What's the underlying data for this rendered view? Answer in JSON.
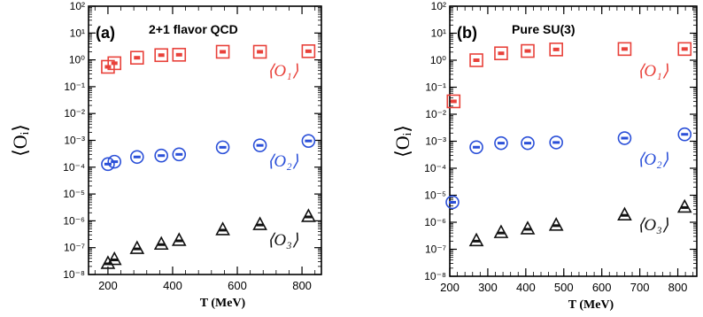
{
  "chart_data": [
    {
      "type": "scatter",
      "panel_label": "(a)",
      "title": "2+1 flavor QCD",
      "xlabel": "T (MeV)",
      "ylabel": "⟨Oᵢ⟩",
      "xlim": [
        140,
        860
      ],
      "ylim": [
        1e-08,
        100
      ],
      "yscale": "log",
      "xticks": [
        200,
        400,
        600,
        800
      ],
      "xtick_labels": [
        "200",
        "400",
        "600",
        "800"
      ],
      "grid": false,
      "series": [
        {
          "name": "⟨O₁⟩",
          "color": "#e8413a",
          "marker": "square",
          "points": [
            {
              "x": 200,
              "y": 0.55
            },
            {
              "x": 220,
              "y": 0.75
            },
            {
              "x": 290,
              "y": 1.2
            },
            {
              "x": 365,
              "y": 1.5
            },
            {
              "x": 420,
              "y": 1.55
            },
            {
              "x": 555,
              "y": 2.0
            },
            {
              "x": 670,
              "y": 2.0
            },
            {
              "x": 820,
              "y": 2.1
            }
          ]
        },
        {
          "name": "⟨O₂⟩",
          "color": "#2a4fd8",
          "marker": "circle",
          "points": [
            {
              "x": 200,
              "y": 0.00013
            },
            {
              "x": 220,
              "y": 0.00016
            },
            {
              "x": 290,
              "y": 0.00024
            },
            {
              "x": 365,
              "y": 0.00027
            },
            {
              "x": 420,
              "y": 0.0003
            },
            {
              "x": 555,
              "y": 0.00055
            },
            {
              "x": 670,
              "y": 0.00065
            },
            {
              "x": 820,
              "y": 0.00095
            }
          ]
        },
        {
          "name": "⟨O₃⟩",
          "color": "#111111",
          "marker": "triangle",
          "points": [
            {
              "x": 200,
              "y": 2.5e-08
            },
            {
              "x": 220,
              "y": 3.5e-08
            },
            {
              "x": 290,
              "y": 9e-08
            },
            {
              "x": 365,
              "y": 1.3e-07
            },
            {
              "x": 420,
              "y": 1.8e-07
            },
            {
              "x": 555,
              "y": 4.5e-07
            },
            {
              "x": 670,
              "y": 7e-07
            },
            {
              "x": 820,
              "y": 1.4e-06
            }
          ]
        }
      ]
    },
    {
      "type": "scatter",
      "panel_label": "(b)",
      "title": "Pure SU(3)",
      "xlabel": "T (MeV)",
      "ylabel": "⟨Oᵢ⟩",
      "xlim": [
        200,
        850
      ],
      "ylim": [
        1e-08,
        100
      ],
      "yscale": "log",
      "xticks": [
        200,
        300,
        400,
        500,
        600,
        700,
        800
      ],
      "xtick_labels": [
        "200",
        "300",
        "400",
        "500",
        "600",
        "700",
        "800"
      ],
      "grid": false,
      "series": [
        {
          "name": "⟨O₁⟩",
          "color": "#e8413a",
          "marker": "square",
          "points": [
            {
              "x": 210,
              "y": 0.03
            },
            {
              "x": 270,
              "y": 1.0
            },
            {
              "x": 335,
              "y": 1.8
            },
            {
              "x": 405,
              "y": 2.2
            },
            {
              "x": 480,
              "y": 2.5
            },
            {
              "x": 660,
              "y": 2.6
            },
            {
              "x": 818,
              "y": 2.6
            }
          ]
        },
        {
          "name": "⟨O₂⟩",
          "color": "#2a4fd8",
          "marker": "circle",
          "points": [
            {
              "x": 207,
              "y": 5.5e-06
            },
            {
              "x": 270,
              "y": 0.0006
            },
            {
              "x": 335,
              "y": 0.00085
            },
            {
              "x": 405,
              "y": 0.00085
            },
            {
              "x": 480,
              "y": 0.0009
            },
            {
              "x": 660,
              "y": 0.0013
            },
            {
              "x": 818,
              "y": 0.0018
            }
          ]
        },
        {
          "name": "⟨O₃⟩",
          "color": "#111111",
          "marker": "triangle",
          "points": [
            {
              "x": 270,
              "y": 2e-07
            },
            {
              "x": 335,
              "y": 4e-07
            },
            {
              "x": 405,
              "y": 5.5e-07
            },
            {
              "x": 480,
              "y": 7.5e-07
            },
            {
              "x": 660,
              "y": 1.8e-06
            },
            {
              "x": 818,
              "y": 3.5e-06
            }
          ]
        }
      ]
    }
  ]
}
